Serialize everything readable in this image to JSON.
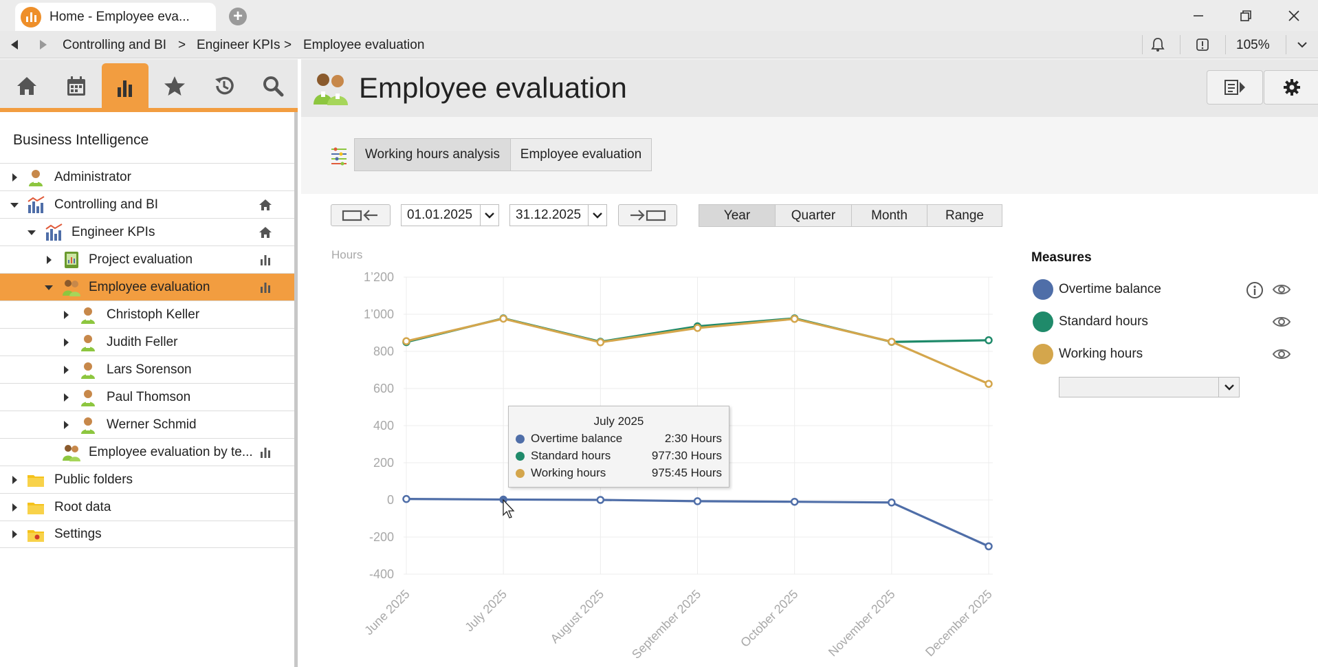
{
  "window": {
    "tab_title": "Home - Employee eva...",
    "zoom": "105%"
  },
  "breadcrumb": [
    "Controlling and BI",
    "Engineer KPIs",
    "Employee evaluation"
  ],
  "breadcrumb_sep": ">",
  "sidebar": {
    "title": "Business Intelligence",
    "tools": [
      "home-icon",
      "calendar-icon",
      "bar-chart-icon",
      "star-icon",
      "history-icon",
      "search-icon"
    ],
    "tree": [
      {
        "label": "Administrator",
        "icon": "person-icon",
        "expanded": false
      },
      {
        "label": "Controlling and BI",
        "icon": "bi-chart-icon",
        "expanded": true,
        "right_icon": "home-icon"
      },
      {
        "label": "Engineer KPIs",
        "icon": "bi-chart-icon",
        "expanded": true,
        "right_icon": "home-icon"
      },
      {
        "label": "Project evaluation",
        "icon": "project-book-icon",
        "expanded": false,
        "right_icon": "bar-chart-icon"
      },
      {
        "label": "Employee evaluation",
        "icon": "employees-icon",
        "expanded": true,
        "right_icon": "bar-chart-icon",
        "selected": true
      },
      {
        "label": "Christoph Keller",
        "icon": "person-icon",
        "expanded": false
      },
      {
        "label": "Judith Feller",
        "icon": "person-icon",
        "expanded": false
      },
      {
        "label": "Lars Sorenson",
        "icon": "person-icon",
        "expanded": false
      },
      {
        "label": "Paul Thomson",
        "icon": "person-icon",
        "expanded": false
      },
      {
        "label": "Werner Schmid",
        "icon": "person-icon",
        "expanded": false
      },
      {
        "label": "Employee evaluation by te...",
        "icon": "employees-icon",
        "right_icon": "bar-chart-icon"
      },
      {
        "label": "Public folders",
        "icon": "folder-icon",
        "expanded": false
      },
      {
        "label": "Root data",
        "icon": "folder-icon",
        "expanded": false
      },
      {
        "label": "Settings",
        "icon": "settings-folder-icon",
        "expanded": false
      }
    ]
  },
  "main": {
    "title": "Employee evaluation",
    "view_tabs": [
      {
        "label": "Working hours analysis",
        "active": true
      },
      {
        "label": "Employee evaluation",
        "active": false
      }
    ],
    "date_from": "01.01.2025",
    "date_to": "31.12.2025",
    "periods": [
      {
        "label": "Year",
        "active": true
      },
      {
        "label": "Quarter",
        "active": false
      },
      {
        "label": "Month",
        "active": false
      },
      {
        "label": "Range",
        "active": false
      }
    ]
  },
  "measures": {
    "title": "Measures",
    "items": [
      {
        "label": "Overtime balance",
        "color": "#4f6ea8",
        "info": true
      },
      {
        "label": "Standard hours",
        "color": "#1f8a6a",
        "info": false
      },
      {
        "label": "Working hours",
        "color": "#d4a64c",
        "info": false
      }
    ]
  },
  "tooltip": {
    "title": "July 2025",
    "rows": [
      {
        "label": "Overtime balance",
        "value": "2:30 Hours",
        "color": "#4f6ea8"
      },
      {
        "label": "Standard hours",
        "value": "977:30 Hours",
        "color": "#1f8a6a"
      },
      {
        "label": "Working hours",
        "value": "975:45 Hours",
        "color": "#d4a64c"
      }
    ]
  },
  "chart_data": {
    "type": "line",
    "ylabel": "Hours",
    "ylim": [
      -400,
      1200
    ],
    "yticks": [
      -400,
      -200,
      0,
      200,
      400,
      600,
      800,
      1000,
      1200
    ],
    "ytick_labels": [
      "-400",
      "-200",
      "0",
      "200",
      "400",
      "600",
      "800",
      "1’000",
      "1’200"
    ],
    "categories": [
      "June 2025",
      "July 2025",
      "August 2025",
      "September 2025",
      "October 2025",
      "November 2025",
      "December 2025"
    ],
    "grid": true,
    "series": [
      {
        "name": "Standard hours",
        "color": "#1f8a6a",
        "values": [
          850,
          978,
          852,
          935,
          978,
          851,
          860
        ]
      },
      {
        "name": "Working hours",
        "color": "#d4a64c",
        "values": [
          855,
          976,
          849,
          926,
          975,
          852,
          625
        ]
      },
      {
        "name": "Overtime balance",
        "color": "#4f6ea8",
        "values": [
          5,
          2,
          0,
          -7,
          -10,
          -14,
          -250
        ]
      }
    ]
  }
}
